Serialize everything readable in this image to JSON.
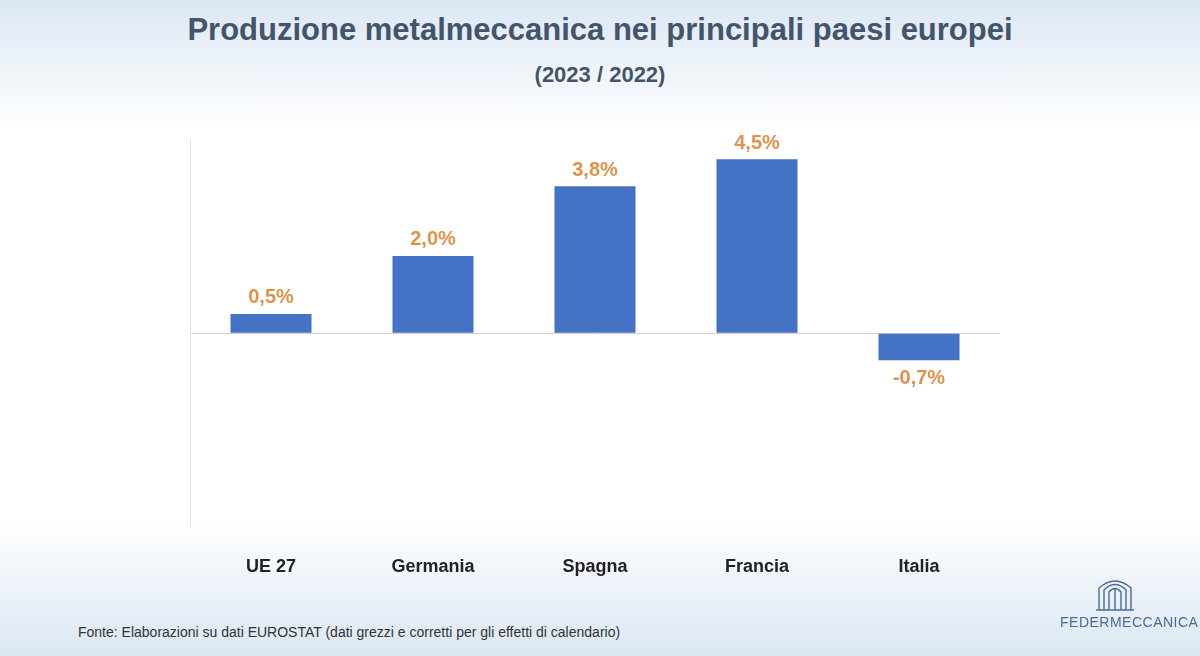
{
  "chart_data": {
    "type": "bar",
    "title": "Produzione metalmeccanica nei principali paesi europei",
    "subtitle": "(2023 / 2022)",
    "categories": [
      "UE 27",
      "Germania",
      "Spagna",
      "Francia",
      "Italia"
    ],
    "values": [
      0.5,
      2.0,
      3.8,
      4.5,
      -0.7
    ],
    "value_labels": [
      "0,5%",
      "2,0%",
      "3,8%",
      "4,5%",
      "-0,7%"
    ],
    "color": "#4472c4",
    "ylim": [
      -5,
      5
    ],
    "yticks": [
      0
    ],
    "grid": true,
    "tick_labels": "x",
    "data_labels": true,
    "source": "Fonte: Elaborazioni su dati EUROSTAT (dati grezzi e corretti per gli effetti di calendario)",
    "logo": "FEDERMECCANICA"
  }
}
